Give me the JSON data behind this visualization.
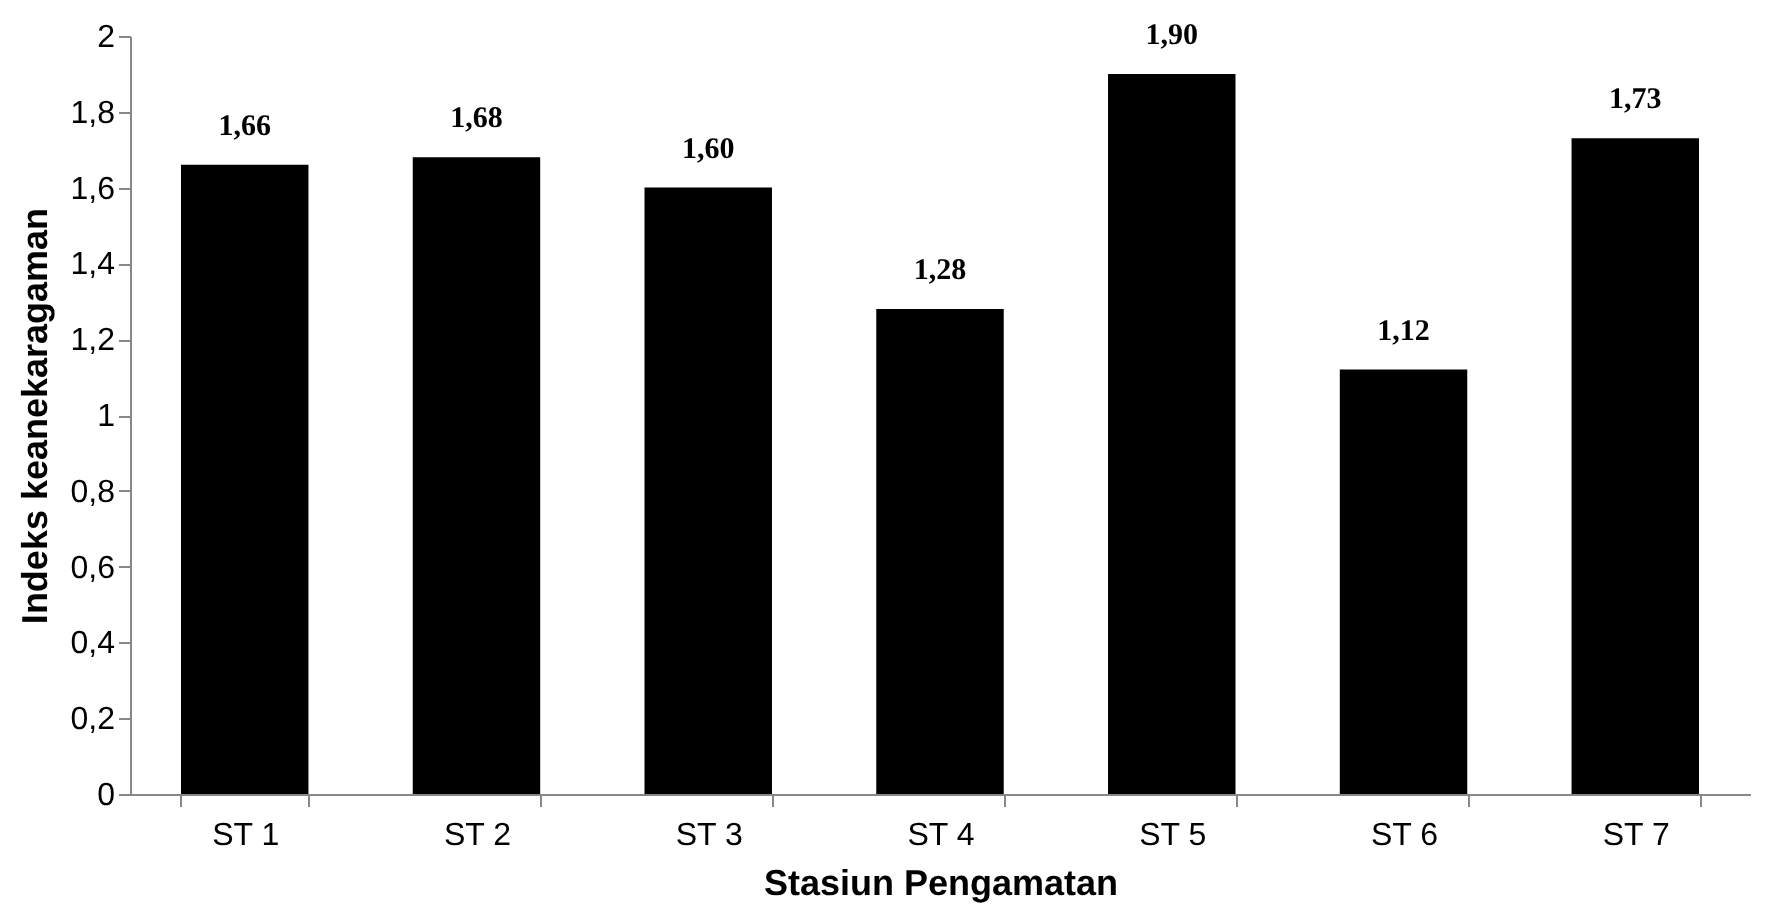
{
  "chart_data": {
    "type": "bar",
    "xlabel": "Stasiun Pengamatan",
    "ylabel": "Indeks keanekaragaman",
    "categories": [
      "ST 1",
      "ST 2",
      "ST 3",
      "ST 4",
      "ST 5",
      "ST 6",
      "ST 7"
    ],
    "values": [
      1.66,
      1.68,
      1.6,
      1.28,
      1.9,
      1.12,
      1.73
    ],
    "value_labels": [
      "1,66",
      "1,68",
      "1,60",
      "1,28",
      "1,90",
      "1,12",
      "1,73"
    ],
    "color": "#000000",
    "ylim": [
      0,
      2
    ],
    "yticks": [
      0,
      {
        "value": 0.2,
        "label": "0,2"
      },
      {
        "value": 0.4,
        "label": "0,4"
      },
      {
        "value": 0.6,
        "label": "0,6"
      },
      {
        "value": 0.8,
        "label": "0,8"
      },
      1,
      {
        "value": 1.2,
        "label": "1,2"
      },
      {
        "value": 1.4,
        "label": "1,4"
      },
      {
        "value": 1.6,
        "label": "1,6"
      },
      {
        "value": 1.8,
        "label": "1,8"
      },
      2
    ],
    "grid": false
  }
}
